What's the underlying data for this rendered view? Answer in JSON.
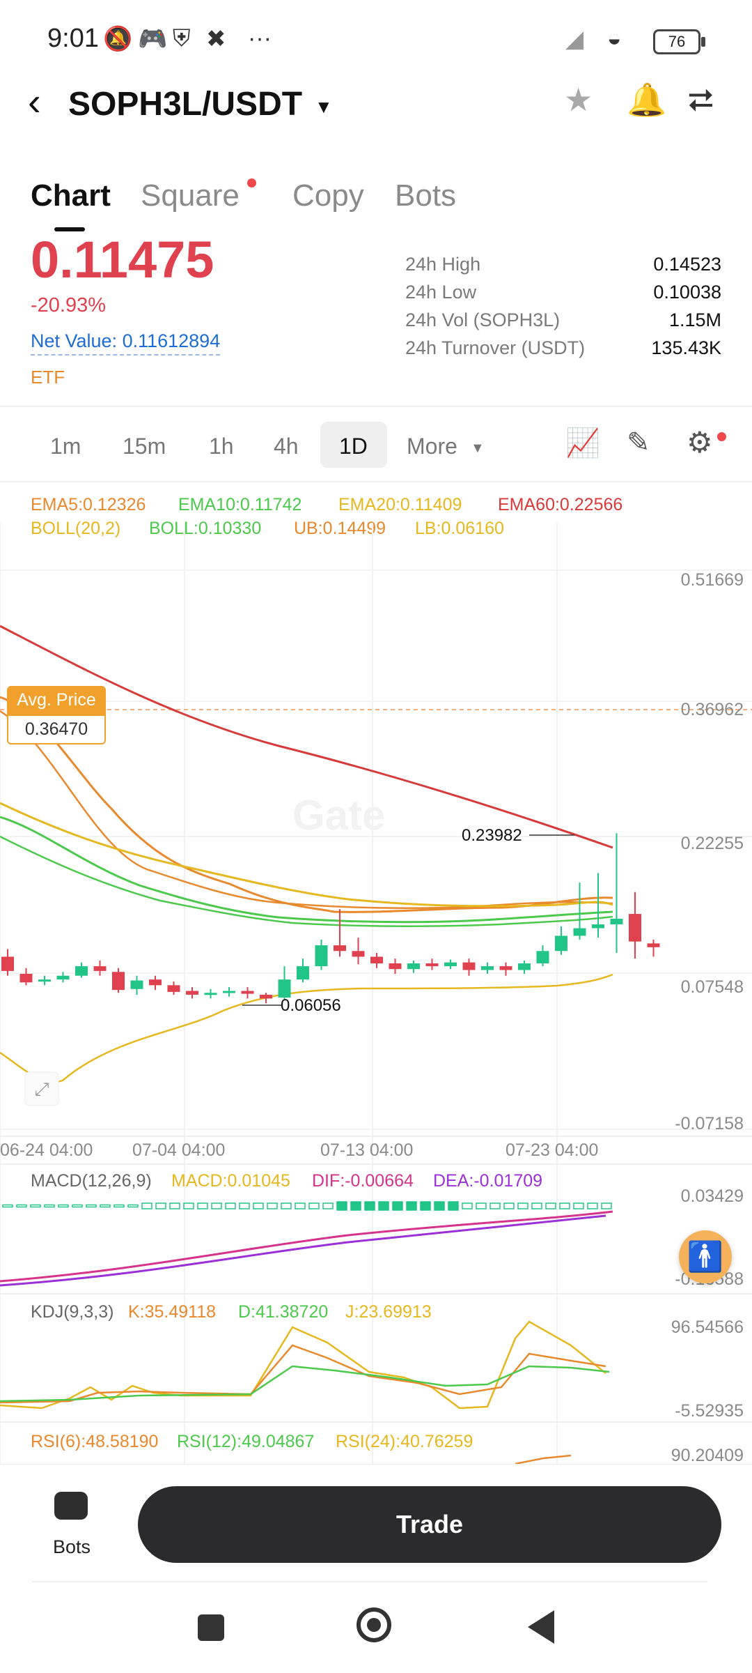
{
  "status": {
    "time": "9:01",
    "battery": "76",
    "more": "···"
  },
  "header": {
    "pair": "SOPH3L/USDT"
  },
  "tabs": [
    "Chart",
    "Square",
    "Copy",
    "Bots"
  ],
  "price": {
    "last": "0.11475",
    "change": "-20.93%",
    "net_value": "Net Value: 0.11612894",
    "tag": "ETF"
  },
  "stats": [
    {
      "label": "24h High",
      "value": "0.14523"
    },
    {
      "label": "24h Low",
      "value": "0.10038"
    },
    {
      "label": "24h Vol (SOPH3L)",
      "value": "1.15M"
    },
    {
      "label": "24h Turnover (USDT)",
      "value": "135.43K"
    }
  ],
  "timeframes": [
    "1m",
    "15m",
    "1h",
    "4h",
    "1D",
    "More"
  ],
  "indicators": {
    "ema5": "EMA5:0.12326",
    "ema10": "EMA10:0.11742",
    "ema20": "EMA20:0.11409",
    "ema60": "EMA60:0.22566",
    "boll": "BOLL(20,2)",
    "boll_val": "BOLL:0.10330",
    "ub": "UB:0.14499",
    "lb": "LB:0.06160",
    "macd_title": "MACD(12,26,9)",
    "macd": "MACD:0.01045",
    "dif": "DIF:-0.00664",
    "dea": "DEA:-0.01709",
    "kdj_title": "KDJ(9,3,3)",
    "k": "K:35.49118",
    "d": "D:41.38720",
    "j": "J:23.69913",
    "rsi6": "RSI(6):48.58190",
    "rsi12": "RSI(12):49.04867",
    "rsi24": "RSI(24):40.76259"
  },
  "avg_price": {
    "title": "Avg. Price",
    "value": "0.36470"
  },
  "annotations": {
    "high": "0.23982",
    "low": "0.06056"
  },
  "price_axis": [
    "0.51669",
    "0.36962",
    "0.22255",
    "0.07548",
    "-0.07158"
  ],
  "time_axis": [
    "06-24 04:00",
    "07-04 04:00",
    "07-13 04:00",
    "07-23 04:00"
  ],
  "macd_axis": [
    "0.03429",
    "-0.13588"
  ],
  "kdj_axis": [
    "96.54566",
    "-5.52935"
  ],
  "rsi_axis": [
    "90.20409"
  ],
  "watermark": "Gate",
  "bottom": {
    "bots_label": "Bots",
    "trade_label": "Trade"
  },
  "colors": {
    "up": "#21c587",
    "down": "#e0414e",
    "ema5": "#e8a020",
    "ema10": "#4cc94c",
    "ema20": "#e6b820",
    "ema60": "#d83a3a",
    "macd_dif": "#d6338a",
    "macd_dea": "#9b30d6"
  },
  "chart_data": {
    "type": "candlestick",
    "x_ticks": [
      "06-24 04:00",
      "07-04 04:00",
      "07-13 04:00",
      "07-23 04:00"
    ],
    "y_ticks": [
      0.51669,
      0.36962,
      0.22255,
      0.07548,
      -0.07158
    ],
    "ylim": [
      -0.07158,
      0.51669
    ],
    "candles": [
      {
        "o": 0.11,
        "c": 0.095,
        "h": 0.118,
        "l": 0.09
      },
      {
        "o": 0.092,
        "c": 0.083,
        "h": 0.098,
        "l": 0.08
      },
      {
        "o": 0.084,
        "c": 0.086,
        "h": 0.09,
        "l": 0.08
      },
      {
        "o": 0.086,
        "c": 0.09,
        "h": 0.094,
        "l": 0.083
      },
      {
        "o": 0.09,
        "c": 0.1,
        "h": 0.104,
        "l": 0.088
      },
      {
        "o": 0.1,
        "c": 0.095,
        "h": 0.106,
        "l": 0.09
      },
      {
        "o": 0.094,
        "c": 0.075,
        "h": 0.098,
        "l": 0.072
      },
      {
        "o": 0.076,
        "c": 0.085,
        "h": 0.09,
        "l": 0.07
      },
      {
        "o": 0.086,
        "c": 0.08,
        "h": 0.09,
        "l": 0.075
      },
      {
        "o": 0.08,
        "c": 0.073,
        "h": 0.084,
        "l": 0.07
      },
      {
        "o": 0.074,
        "c": 0.07,
        "h": 0.078,
        "l": 0.066
      },
      {
        "o": 0.07,
        "c": 0.072,
        "h": 0.076,
        "l": 0.066
      },
      {
        "o": 0.072,
        "c": 0.074,
        "h": 0.078,
        "l": 0.068
      },
      {
        "o": 0.074,
        "c": 0.071,
        "h": 0.078,
        "l": 0.066
      },
      {
        "o": 0.07,
        "c": 0.066,
        "h": 0.072,
        "l": 0.061
      },
      {
        "o": 0.067,
        "c": 0.086,
        "h": 0.1,
        "l": 0.064
      },
      {
        "o": 0.086,
        "c": 0.1,
        "h": 0.108,
        "l": 0.083
      },
      {
        "o": 0.1,
        "c": 0.122,
        "h": 0.128,
        "l": 0.096
      },
      {
        "o": 0.122,
        "c": 0.116,
        "h": 0.16,
        "l": 0.11
      },
      {
        "o": 0.116,
        "c": 0.11,
        "h": 0.13,
        "l": 0.102
      },
      {
        "o": 0.11,
        "c": 0.103,
        "h": 0.114,
        "l": 0.098
      },
      {
        "o": 0.103,
        "c": 0.097,
        "h": 0.108,
        "l": 0.092
      },
      {
        "o": 0.097,
        "c": 0.103,
        "h": 0.106,
        "l": 0.093
      },
      {
        "o": 0.103,
        "c": 0.1,
        "h": 0.108,
        "l": 0.096
      },
      {
        "o": 0.1,
        "c": 0.104,
        "h": 0.107,
        "l": 0.097
      },
      {
        "o": 0.104,
        "c": 0.096,
        "h": 0.108,
        "l": 0.09
      },
      {
        "o": 0.096,
        "c": 0.1,
        "h": 0.104,
        "l": 0.092
      },
      {
        "o": 0.1,
        "c": 0.096,
        "h": 0.104,
        "l": 0.09
      },
      {
        "o": 0.096,
        "c": 0.103,
        "h": 0.106,
        "l": 0.092
      },
      {
        "o": 0.103,
        "c": 0.116,
        "h": 0.122,
        "l": 0.1
      },
      {
        "o": 0.116,
        "c": 0.132,
        "h": 0.142,
        "l": 0.112
      },
      {
        "o": 0.132,
        "c": 0.14,
        "h": 0.188,
        "l": 0.128
      },
      {
        "o": 0.14,
        "c": 0.144,
        "h": 0.198,
        "l": 0.13
      },
      {
        "o": 0.144,
        "c": 0.15,
        "h": 0.24,
        "l": 0.114
      },
      {
        "o": 0.155,
        "c": 0.126,
        "h": 0.178,
        "l": 0.108
      },
      {
        "o": 0.124,
        "c": 0.12,
        "h": 0.128,
        "l": 0.11
      }
    ]
  }
}
